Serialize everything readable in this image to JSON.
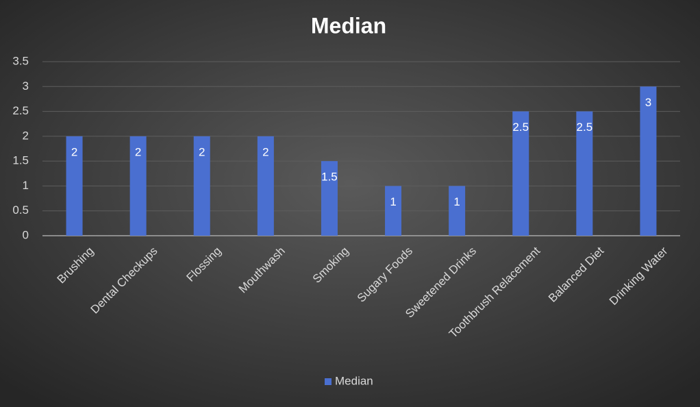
{
  "chart_data": {
    "type": "bar",
    "title": "Median",
    "categories": [
      "Brushing",
      "Dental Checkups",
      "Flossing",
      "Mouthwash",
      "Smoking",
      "Sugary Foods",
      "Sweetened Drinks",
      "Toothbrush Relacement",
      "Balanced Diet",
      "Drinking Water"
    ],
    "series": [
      {
        "name": "Median",
        "color": "#4a6fd0",
        "values": [
          2,
          2,
          2,
          2,
          1.5,
          1,
          1,
          2.5,
          2.5,
          3
        ]
      }
    ],
    "ylim": [
      0,
      3.5
    ],
    "yticks": [
      0,
      0.5,
      1,
      1.5,
      2,
      2.5,
      3,
      3.5
    ],
    "grid": true,
    "legend": "bottom"
  }
}
